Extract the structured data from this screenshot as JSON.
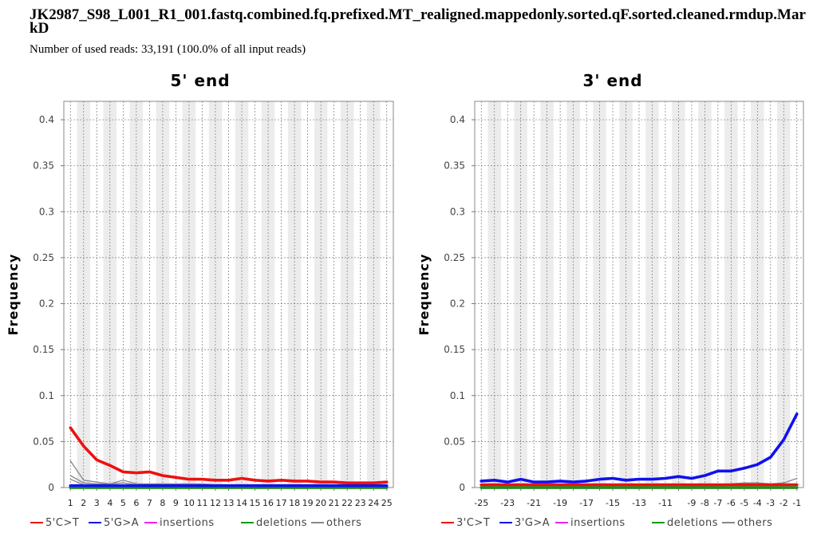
{
  "header": {
    "title": "JK2987_S98_L001_R1_001.fastq.combined.fq.prefixed.MT_realigned.mappedonly.sorted.qF.sorted.cleaned.rmdup.MarkD",
    "subtitle": "Number of used reads: 33,191 (100.0% of all input reads)"
  },
  "colors": {
    "ct": "#ee1111",
    "ga": "#1111ee",
    "insertions": "#ee22ee",
    "deletions": "#119911",
    "others": "#888888"
  },
  "chart_data": [
    {
      "type": "line",
      "title": "5' end",
      "xlabel": "",
      "ylabel": "Frequency",
      "ylim": [
        0,
        0.42
      ],
      "yticks": [
        "0",
        "0.05",
        "0.1",
        "0.15",
        "0.2",
        "0.25",
        "0.3",
        "0.35",
        "0.4"
      ],
      "categories": [
        "1",
        "2",
        "3",
        "4",
        "5",
        "6",
        "7",
        "8",
        "9",
        "10",
        "11",
        "12",
        "13",
        "14",
        "15",
        "16",
        "17",
        "18",
        "19",
        "20",
        "21",
        "22",
        "23",
        "24",
        "25"
      ],
      "series": [
        {
          "name": "5'C>T",
          "color": "#ee1111",
          "values": [
            0.065,
            0.045,
            0.03,
            0.024,
            0.017,
            0.016,
            0.017,
            0.013,
            0.011,
            0.009,
            0.009,
            0.008,
            0.008,
            0.01,
            0.008,
            0.007,
            0.008,
            0.007,
            0.007,
            0.006,
            0.006,
            0.005,
            0.005,
            0.005,
            0.006
          ]
        },
        {
          "name": "5'G>A",
          "color": "#1111ee",
          "values": [
            0.002,
            0.002,
            0.002,
            0.002,
            0.002,
            0.002,
            0.002,
            0.002,
            0.002,
            0.002,
            0.002,
            0.002,
            0.002,
            0.002,
            0.002,
            0.002,
            0.002,
            0.002,
            0.002,
            0.002,
            0.002,
            0.002,
            0.002,
            0.002,
            0.002
          ]
        },
        {
          "name": "insertions",
          "color": "#ee22ee",
          "values": [
            0,
            0,
            0,
            0,
            0,
            0,
            0,
            0,
            0,
            0,
            0,
            0,
            0,
            0,
            0,
            0,
            0,
            0,
            0,
            0,
            0,
            0,
            0,
            0,
            0
          ]
        },
        {
          "name": "deletions",
          "color": "#119911",
          "values": [
            0,
            0,
            0,
            0,
            0,
            0,
            0,
            0,
            0,
            0,
            0,
            0,
            0,
            0,
            0,
            0,
            0,
            0,
            0,
            0,
            0,
            0,
            0,
            0,
            0
          ]
        },
        {
          "name": "others",
          "color": "#888888",
          "values": [
            0.029,
            0.008,
            0.006,
            0.004,
            0.008,
            0.004,
            0.004,
            0.004,
            0.004,
            0.004,
            0.004,
            0.003,
            0.003,
            0.003,
            0.003,
            0.003,
            0.003,
            0.003,
            0.003,
            0.003,
            0.003,
            0.003,
            0.003,
            0.003,
            0.003
          ]
        },
        {
          "name": "others",
          "color": "#888888",
          "values": [
            0.013,
            0.005,
            0.004,
            0.004,
            0.005,
            0.003,
            0.003,
            0.003,
            0.003,
            0.003,
            0.003,
            0.003,
            0.003,
            0.003,
            0.003,
            0.003,
            0.003,
            0.003,
            0.003,
            0.003,
            0.003,
            0.003,
            0.003,
            0.003,
            0.003
          ]
        },
        {
          "name": "others",
          "color": "#888888",
          "values": [
            0.009,
            0.003,
            0.003,
            0.003,
            0.003,
            0.002,
            0.002,
            0.002,
            0.002,
            0.002,
            0.002,
            0.002,
            0.002,
            0.002,
            0.002,
            0.002,
            0.002,
            0.002,
            0.002,
            0.002,
            0.002,
            0.002,
            0.002,
            0.002,
            0.002
          ]
        }
      ],
      "legend": [
        {
          "label": "5'C>T",
          "color": "#ee1111"
        },
        {
          "label": "5'G>A",
          "color": "#1111ee"
        },
        {
          "label": "insertions",
          "color": "#ee22ee"
        },
        {
          "label": "deletions",
          "color": "#119911"
        },
        {
          "label": "others",
          "color": "#888888"
        }
      ]
    },
    {
      "type": "line",
      "title": "3' end",
      "xlabel": "",
      "ylabel": "Frequency",
      "ylim": [
        0,
        0.42
      ],
      "yticks": [
        "0",
        "0.05",
        "0.1",
        "0.15",
        "0.2",
        "0.25",
        "0.3",
        "0.35",
        "0.4"
      ],
      "categories": [
        "-25",
        "-24",
        "-23",
        "-22",
        "-21",
        "-20",
        "-19",
        "-18",
        "-17",
        "-16",
        "-15",
        "-14",
        "-13",
        "-12",
        "-11",
        "-10",
        "-9",
        "-8",
        "-7",
        "-6",
        "-5",
        "-4",
        "-3",
        "-2",
        "-1"
      ],
      "tick_labels": [
        "-25",
        "",
        "-23",
        "",
        "-21",
        "",
        "-19",
        "",
        "-17",
        "",
        "-15",
        "",
        "-13",
        "",
        "-11",
        "",
        "-9",
        "-8",
        "-7",
        "-6",
        "-5",
        "-4",
        "-3",
        "-2",
        "-1"
      ],
      "series": [
        {
          "name": "3'C>T",
          "color": "#ee1111",
          "values": [
            0.003,
            0.003,
            0.003,
            0.003,
            0.003,
            0.003,
            0.003,
            0.003,
            0.003,
            0.003,
            0.003,
            0.003,
            0.003,
            0.003,
            0.003,
            0.003,
            0.003,
            0.003,
            0.003,
            0.003,
            0.003,
            0.003,
            0.003,
            0.003,
            0.003
          ]
        },
        {
          "name": "3'G>A",
          "color": "#1111ee",
          "values": [
            0.007,
            0.008,
            0.006,
            0.009,
            0.006,
            0.006,
            0.007,
            0.006,
            0.007,
            0.009,
            0.01,
            0.008,
            0.009,
            0.009,
            0.01,
            0.012,
            0.01,
            0.013,
            0.018,
            0.018,
            0.021,
            0.025,
            0.033,
            0.052,
            0.08
          ]
        },
        {
          "name": "insertions",
          "color": "#ee22ee",
          "values": [
            0,
            0,
            0,
            0,
            0,
            0,
            0,
            0,
            0,
            0,
            0,
            0,
            0,
            0,
            0,
            0,
            0,
            0,
            0,
            0,
            0,
            0,
            0,
            0,
            0
          ]
        },
        {
          "name": "deletions",
          "color": "#119911",
          "values": [
            0,
            0,
            0,
            0,
            0,
            0,
            0,
            0,
            0,
            0,
            0,
            0,
            0,
            0,
            0,
            0,
            0,
            0,
            0,
            0,
            0,
            0,
            0,
            0,
            0
          ]
        },
        {
          "name": "others",
          "color": "#888888",
          "values": [
            0.003,
            0.003,
            0.003,
            0.003,
            0.003,
            0.003,
            0.003,
            0.003,
            0.003,
            0.003,
            0.003,
            0.003,
            0.003,
            0.003,
            0.003,
            0.003,
            0.003,
            0.003,
            0.003,
            0.004,
            0.005,
            0.005,
            0.004,
            0.005,
            0.01
          ]
        },
        {
          "name": "others",
          "color": "#888888",
          "values": [
            0.002,
            0.002,
            0.002,
            0.002,
            0.002,
            0.002,
            0.002,
            0.002,
            0.002,
            0.002,
            0.002,
            0.002,
            0.002,
            0.002,
            0.002,
            0.002,
            0.002,
            0.002,
            0.002,
            0.003,
            0.004,
            0.004,
            0.003,
            0.003,
            0.004
          ]
        }
      ],
      "legend": [
        {
          "label": "3'C>T",
          "color": "#ee1111"
        },
        {
          "label": "3'G>A",
          "color": "#1111ee"
        },
        {
          "label": "insertions",
          "color": "#ee22ee"
        },
        {
          "label": "deletions",
          "color": "#119911"
        },
        {
          "label": "others",
          "color": "#888888"
        }
      ]
    }
  ]
}
